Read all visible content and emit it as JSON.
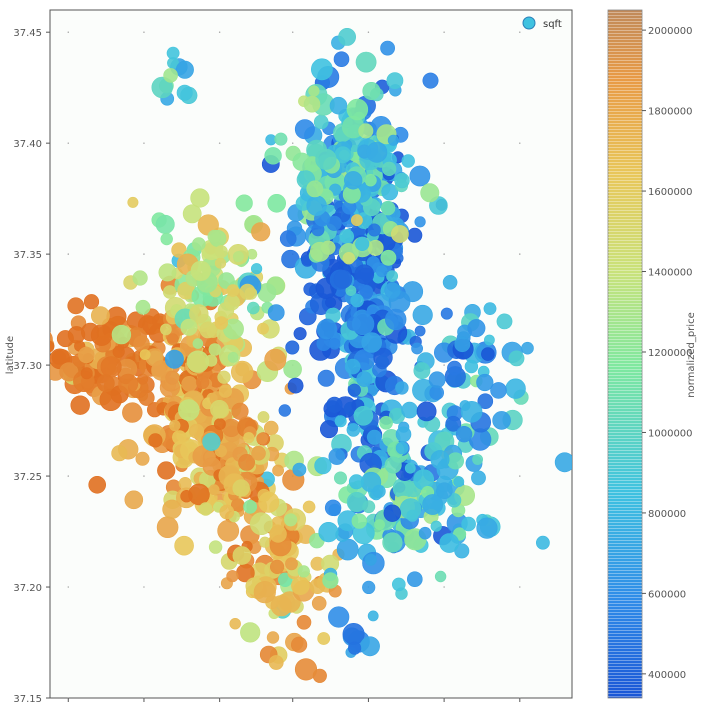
{
  "chart_data": {
    "type": "scatter",
    "title": "",
    "xlabel": "",
    "ylabel": "latitude",
    "ylim": [
      37.15,
      37.46
    ],
    "y_ticks": [
      "37.15",
      "37.20",
      "37.25",
      "37.30",
      "37.35",
      "37.40",
      "37.45"
    ],
    "x_tick_labels": [],
    "grid": "dotted",
    "legend": {
      "entries": [
        "sqft"
      ],
      "placement": "top-right"
    },
    "colorbar": {
      "label": "normalized_price",
      "range": [
        340000,
        2050000
      ],
      "ticks": [
        "400000",
        "600000",
        "800000",
        "1000000",
        "1200000",
        "1400000",
        "1600000",
        "1800000",
        "2000000"
      ],
      "colormap": [
        "#1a56d6",
        "#2f8be8",
        "#3fc2e0",
        "#7ee8a0",
        "#c9e27a",
        "#e8c75a",
        "#e89a45",
        "#e07020"
      ]
    },
    "series": [
      {
        "encoding": "latitude on y, longitude on x (unlabeled), color = normalized_price",
        "clusters": [
          {
            "lat": 37.305,
            "lon_frac": 0.12,
            "price_level": 1950000
          },
          {
            "lat": 37.28,
            "lon_frac": 0.26,
            "price_level": 1800000
          },
          {
            "lat": 37.26,
            "lon_frac": 0.34,
            "price_level": 1700000
          },
          {
            "lat": 37.21,
            "lon_frac": 0.45,
            "price_level": 1650000
          },
          {
            "lat": 37.33,
            "lon_frac": 0.32,
            "price_level": 1300000
          },
          {
            "lat": 37.355,
            "lon_frac": 0.58,
            "price_level": 450000
          },
          {
            "lat": 37.32,
            "lon_frac": 0.6,
            "price_level": 500000
          },
          {
            "lat": 37.39,
            "lon_frac": 0.58,
            "price_level": 900000
          },
          {
            "lat": 37.24,
            "lon_frac": 0.68,
            "price_level": 850000
          },
          {
            "lat": 37.295,
            "lon_frac": 0.8,
            "price_level": 700000
          },
          {
            "lat": 37.43,
            "lon_frac": 0.23,
            "price_level": 750000
          },
          {
            "lat": 37.175,
            "lon_frac": 0.58,
            "price_level": 800000
          }
        ]
      }
    ]
  }
}
